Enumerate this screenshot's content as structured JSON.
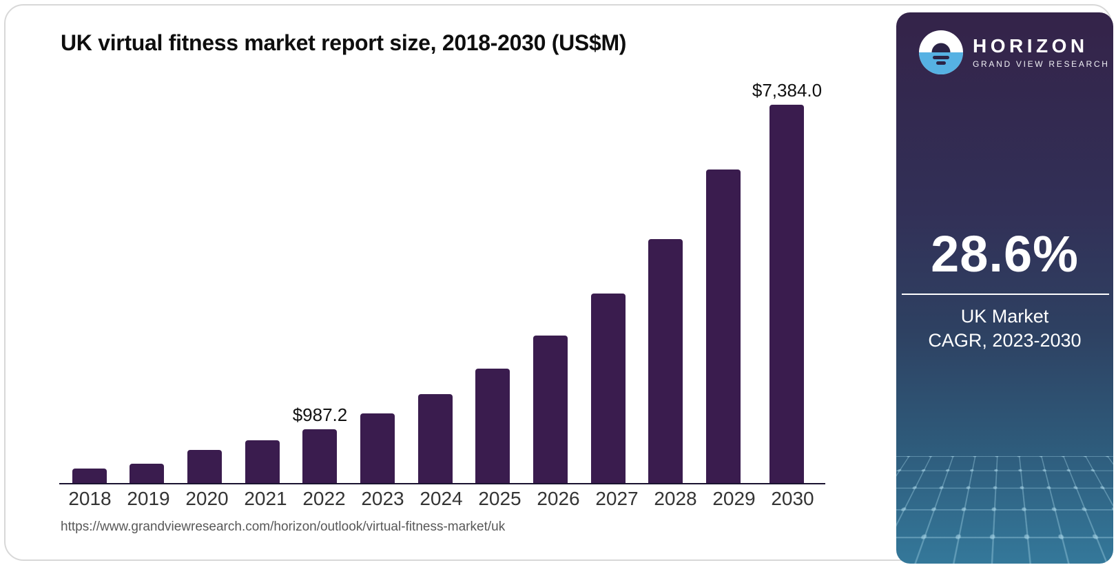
{
  "chart": {
    "title": "UK virtual fitness market report size, 2018-2030 (US$M)",
    "source_url": "https://www.grandviewresearch.com/horizon/outlook/virtual-fitness-market/uk"
  },
  "chart_data": {
    "type": "bar",
    "title": "UK virtual fitness market report size, 2018-2030 (US$M)",
    "categories": [
      "2018",
      "2019",
      "2020",
      "2021",
      "2022",
      "2023",
      "2024",
      "2025",
      "2026",
      "2027",
      "2028",
      "2029",
      "2030"
    ],
    "values": [
      270,
      348,
      610,
      782,
      987.2,
      1270,
      1633,
      2100,
      2701,
      3473,
      4467,
      5744,
      7384
    ],
    "bar_labels": [
      "",
      "",
      "",
      "",
      "$987.2",
      "",
      "",
      "",
      "",
      "",
      "",
      "",
      "$7,384.0"
    ],
    "xlabel": "",
    "ylabel": "US$M",
    "ylim": [
      0,
      7384
    ],
    "grid": "off",
    "legend": "none",
    "bar_color": "#3a1c4e"
  },
  "sidebar": {
    "logo": {
      "brand": "HORIZON",
      "subtitle": "GRAND VIEW RESEARCH",
      "icon": "horizon-sun-over-water-icon",
      "icon_blue": "#56b1e3",
      "icon_dark": "#2b2345"
    },
    "stat": {
      "value": "28.6%",
      "caption_line1": "UK Market",
      "caption_line2": "CAGR, 2023-2030"
    },
    "colors": {
      "gradient_top": "#342349",
      "gradient_bottom": "#34789a",
      "mesh_line": "#9bcde1"
    }
  }
}
